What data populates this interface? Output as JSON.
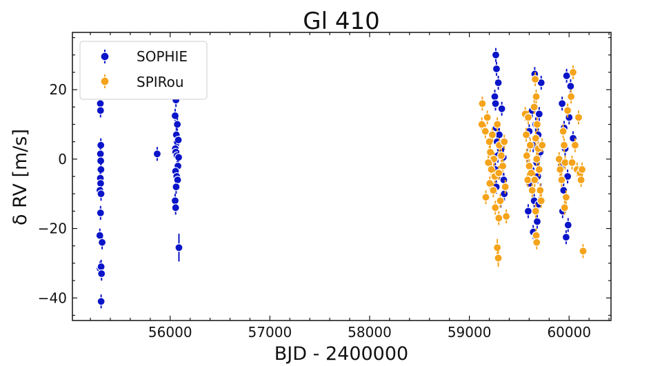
{
  "chart_data": {
    "type": "scatter",
    "title": "Gl 410",
    "xlabel": "BJD - 2400000",
    "ylabel": "δ RV [m/s]",
    "xlim": [
      55020,
      60420
    ],
    "ylim": [
      -46.5,
      36.5
    ],
    "x_ticks": [
      56000,
      57000,
      58000,
      59000,
      60000
    ],
    "y_ticks": [
      -40,
      -20,
      0,
      20
    ],
    "y_tick_labels": [
      "−40",
      "−20",
      "0",
      "20"
    ],
    "x_tick_labels": [
      "56000",
      "57000",
      "58000",
      "59000",
      "60000"
    ],
    "grid": false,
    "legend_position": "top-left",
    "series": [
      {
        "name": "SOPHIE",
        "color": "#0a14c8",
        "points": [
          {
            "x": 55340,
            "y": 29.5,
            "err": 2
          },
          {
            "x": 55305,
            "y": 25.5,
            "err": 2
          },
          {
            "x": 55298,
            "y": 23.5,
            "err": 2
          },
          {
            "x": 55300,
            "y": 16,
            "err": 2
          },
          {
            "x": 55302,
            "y": 14,
            "err": 2
          },
          {
            "x": 55305,
            "y": 4,
            "err": 2
          },
          {
            "x": 55301,
            "y": 1.5,
            "err": 2
          },
          {
            "x": 55304,
            "y": -0.5,
            "err": 2
          },
          {
            "x": 55306,
            "y": -3,
            "err": 2
          },
          {
            "x": 55300,
            "y": -5.5,
            "err": 2
          },
          {
            "x": 55303,
            "y": -7,
            "err": 2
          },
          {
            "x": 55296,
            "y": -9,
            "err": 2
          },
          {
            "x": 55307,
            "y": -10,
            "err": 2
          },
          {
            "x": 55302,
            "y": -15.5,
            "err": 2
          },
          {
            "x": 55295,
            "y": -22,
            "err": 2
          },
          {
            "x": 55318,
            "y": -24,
            "err": 2
          },
          {
            "x": 55297,
            "y": -31.5,
            "err": 2
          },
          {
            "x": 55308,
            "y": -31,
            "err": 2
          },
          {
            "x": 55312,
            "y": -33,
            "err": 2
          },
          {
            "x": 55308,
            "y": -41,
            "err": 2
          },
          {
            "x": 55870,
            "y": 1.5,
            "err": 2
          },
          {
            "x": 56058,
            "y": 17,
            "err": 2
          },
          {
            "x": 56050,
            "y": 12.5,
            "err": 2
          },
          {
            "x": 56072,
            "y": 10,
            "err": 2
          },
          {
            "x": 56062,
            "y": 7,
            "err": 2
          },
          {
            "x": 56070,
            "y": 5,
            "err": 2
          },
          {
            "x": 56082,
            "y": 5.5,
            "err": 2
          },
          {
            "x": 56052,
            "y": 3,
            "err": 2
          },
          {
            "x": 56056,
            "y": 2,
            "err": 2
          },
          {
            "x": 56068,
            "y": 1,
            "err": 2
          },
          {
            "x": 56085,
            "y": 0.5,
            "err": 2
          },
          {
            "x": 56078,
            "y": -2,
            "err": 2
          },
          {
            "x": 56054,
            "y": -3.5,
            "err": 2
          },
          {
            "x": 56066,
            "y": -5,
            "err": 2
          },
          {
            "x": 56075,
            "y": -6,
            "err": 2
          },
          {
            "x": 56060,
            "y": -8,
            "err": 2
          },
          {
            "x": 56050,
            "y": -12,
            "err": 2
          },
          {
            "x": 56055,
            "y": -14,
            "err": 2
          },
          {
            "x": 56088,
            "y": -25.5,
            "err": 4
          },
          {
            "x": 59265,
            "y": 30,
            "err": 2
          },
          {
            "x": 59272,
            "y": 26,
            "err": 2
          },
          {
            "x": 59255,
            "y": 18,
            "err": 2
          },
          {
            "x": 59262,
            "y": 16,
            "err": 2
          },
          {
            "x": 59290,
            "y": 22,
            "err": 2
          },
          {
            "x": 59325,
            "y": 14.5,
            "err": 2
          },
          {
            "x": 59268,
            "y": 9,
            "err": 2
          },
          {
            "x": 59300,
            "y": 7,
            "err": 2
          },
          {
            "x": 59278,
            "y": 5,
            "err": 2
          },
          {
            "x": 59320,
            "y": 3,
            "err": 2
          },
          {
            "x": 59285,
            "y": 1,
            "err": 2
          },
          {
            "x": 59340,
            "y": 0.5,
            "err": 2
          },
          {
            "x": 59260,
            "y": -3,
            "err": 2
          },
          {
            "x": 59308,
            "y": -4,
            "err": 2
          },
          {
            "x": 59345,
            "y": -6,
            "err": 2
          },
          {
            "x": 59270,
            "y": -8,
            "err": 2
          },
          {
            "x": 59315,
            "y": -12,
            "err": 2
          },
          {
            "x": 59350,
            "y": -10,
            "err": 2
          },
          {
            "x": 59655,
            "y": 24.5,
            "err": 2
          },
          {
            "x": 59720,
            "y": 22,
            "err": 2
          },
          {
            "x": 59630,
            "y": 14,
            "err": 2
          },
          {
            "x": 59700,
            "y": 13,
            "err": 2
          },
          {
            "x": 59665,
            "y": 10,
            "err": 2
          },
          {
            "x": 59600,
            "y": 8,
            "err": 2
          },
          {
            "x": 59690,
            "y": 7,
            "err": 2
          },
          {
            "x": 59640,
            "y": 4,
            "err": 2
          },
          {
            "x": 59710,
            "y": 2,
            "err": 2
          },
          {
            "x": 59580,
            "y": 1,
            "err": 2
          },
          {
            "x": 59675,
            "y": -1,
            "err": 2
          },
          {
            "x": 59620,
            "y": -3,
            "err": 2
          },
          {
            "x": 59685,
            "y": -5,
            "err": 2
          },
          {
            "x": 59605,
            "y": -7,
            "err": 2
          },
          {
            "x": 59715,
            "y": -9,
            "err": 2
          },
          {
            "x": 59650,
            "y": -12,
            "err": 2
          },
          {
            "x": 59695,
            "y": -13,
            "err": 2
          },
          {
            "x": 59590,
            "y": -15,
            "err": 2
          },
          {
            "x": 59680,
            "y": -18,
            "err": 2
          },
          {
            "x": 59640,
            "y": -21,
            "err": 2
          },
          {
            "x": 59975,
            "y": 24,
            "err": 2
          },
          {
            "x": 60015,
            "y": 21,
            "err": 2
          },
          {
            "x": 59930,
            "y": 16,
            "err": 2
          },
          {
            "x": 60000,
            "y": 12,
            "err": 2
          },
          {
            "x": 59950,
            "y": 9,
            "err": 2
          },
          {
            "x": 60040,
            "y": 6,
            "err": 2
          },
          {
            "x": 59960,
            "y": 3,
            "err": 2
          },
          {
            "x": 59920,
            "y": -2,
            "err": 2
          },
          {
            "x": 59985,
            "y": -5,
            "err": 2
          },
          {
            "x": 59945,
            "y": -9,
            "err": 2
          },
          {
            "x": 59935,
            "y": -15,
            "err": 2
          },
          {
            "x": 59990,
            "y": -19,
            "err": 2
          },
          {
            "x": 59970,
            "y": -22.5,
            "err": 2
          }
        ]
      },
      {
        "name": "SPIRou",
        "color": "#f5a31a",
        "points": [
          {
            "x": 59130,
            "y": 16,
            "err": 2
          },
          {
            "x": 59125,
            "y": 10,
            "err": 2
          },
          {
            "x": 59180,
            "y": 12,
            "err": 2
          },
          {
            "x": 59160,
            "y": 8,
            "err": 2
          },
          {
            "x": 59200,
            "y": 5,
            "err": 2
          },
          {
            "x": 59230,
            "y": 7,
            "err": 2
          },
          {
            "x": 59210,
            "y": 2,
            "err": 2
          },
          {
            "x": 59245,
            "y": 0,
            "err": 2
          },
          {
            "x": 59190,
            "y": -1,
            "err": 2
          },
          {
            "x": 59220,
            "y": -3,
            "err": 2
          },
          {
            "x": 59255,
            "y": -5,
            "err": 2
          },
          {
            "x": 59205,
            "y": -7,
            "err": 2
          },
          {
            "x": 59165,
            "y": -11,
            "err": 2
          },
          {
            "x": 59240,
            "y": -9,
            "err": 2
          },
          {
            "x": 59280,
            "y": 10,
            "err": 2
          },
          {
            "x": 59300,
            "y": 4,
            "err": 2
          },
          {
            "x": 59320,
            "y": 1,
            "err": 2
          },
          {
            "x": 59335,
            "y": -2,
            "err": 2
          },
          {
            "x": 59295,
            "y": -4,
            "err": 2
          },
          {
            "x": 59350,
            "y": 5,
            "err": 2
          },
          {
            "x": 59360,
            "y": -8,
            "err": 2
          },
          {
            "x": 59310,
            "y": -12,
            "err": 2
          },
          {
            "x": 59295,
            "y": -17,
            "err": 2
          },
          {
            "x": 59370,
            "y": -16.5,
            "err": 2
          },
          {
            "x": 59280,
            "y": -25.5,
            "err": 2.5
          },
          {
            "x": 59290,
            "y": -28.5,
            "err": 2.5
          },
          {
            "x": 59260,
            "y": -14,
            "err": 2
          },
          {
            "x": 59560,
            "y": 13,
            "err": 2
          },
          {
            "x": 59590,
            "y": 12,
            "err": 2
          },
          {
            "x": 59570,
            "y": 7,
            "err": 2
          },
          {
            "x": 59610,
            "y": 4,
            "err": 2
          },
          {
            "x": 59575,
            "y": 1,
            "err": 2
          },
          {
            "x": 59600,
            "y": -2,
            "err": 2
          },
          {
            "x": 59620,
            "y": -4,
            "err": 2
          },
          {
            "x": 59585,
            "y": -6,
            "err": 2
          },
          {
            "x": 59630,
            "y": -9,
            "err": 2
          },
          {
            "x": 59660,
            "y": 23,
            "err": 2
          },
          {
            "x": 59670,
            "y": 18,
            "err": 2
          },
          {
            "x": 59650,
            "y": 15,
            "err": 2
          },
          {
            "x": 59680,
            "y": 10,
            "err": 2
          },
          {
            "x": 59665,
            "y": 6,
            "err": 2
          },
          {
            "x": 59690,
            "y": 3,
            "err": 2
          },
          {
            "x": 59675,
            "y": 0,
            "err": 2
          },
          {
            "x": 59700,
            "y": -3,
            "err": 2
          },
          {
            "x": 59655,
            "y": -6,
            "err": 2
          },
          {
            "x": 59710,
            "y": -9,
            "err": 2
          },
          {
            "x": 59665,
            "y": -15,
            "err": 2
          },
          {
            "x": 59670,
            "y": -22,
            "err": 2
          },
          {
            "x": 59675,
            "y": -24,
            "err": 2
          },
          {
            "x": 59720,
            "y": -12,
            "err": 2
          },
          {
            "x": 59730,
            "y": 4,
            "err": 2
          },
          {
            "x": 59900,
            "y": 0,
            "err": 2
          },
          {
            "x": 59910,
            "y": -3,
            "err": 2
          },
          {
            "x": 59925,
            "y": -6,
            "err": 2
          },
          {
            "x": 59940,
            "y": 8,
            "err": 2
          },
          {
            "x": 59950,
            "y": 4,
            "err": 2
          },
          {
            "x": 59960,
            "y": -1,
            "err": 2
          },
          {
            "x": 59970,
            "y": -11,
            "err": 2
          },
          {
            "x": 59955,
            "y": -14,
            "err": 2
          },
          {
            "x": 59985,
            "y": 14,
            "err": 2
          },
          {
            "x": 60020,
            "y": 18,
            "err": 2
          },
          {
            "x": 60040,
            "y": 25,
            "err": 2
          },
          {
            "x": 60030,
            "y": -1,
            "err": 2
          },
          {
            "x": 60060,
            "y": 4,
            "err": 2
          },
          {
            "x": 60080,
            "y": -3,
            "err": 2
          },
          {
            "x": 60095,
            "y": 12,
            "err": 2
          },
          {
            "x": 60110,
            "y": -4,
            "err": 2
          },
          {
            "x": 60120,
            "y": -6,
            "err": 2
          },
          {
            "x": 60130,
            "y": -3,
            "err": 2
          },
          {
            "x": 60140,
            "y": -26.5,
            "err": 2
          }
        ]
      }
    ]
  }
}
